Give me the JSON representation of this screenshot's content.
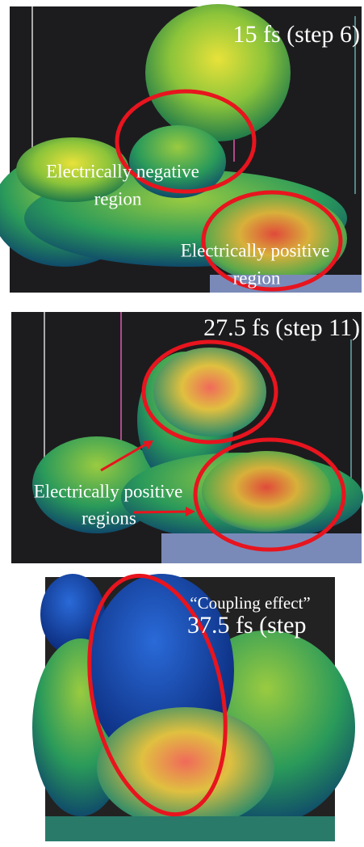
{
  "panels": [
    {
      "time_label": "15 fs (step 6)",
      "annotations": [
        "Electrically negative",
        "region",
        "Electrically positive",
        "region"
      ]
    },
    {
      "time_label": "27.5 fs (step 11)",
      "annotations": [
        "Electrically positive",
        "regions"
      ]
    },
    {
      "time_label": "37.5 fs (step",
      "annotations": [
        "“Coupling effect”"
      ]
    }
  ]
}
